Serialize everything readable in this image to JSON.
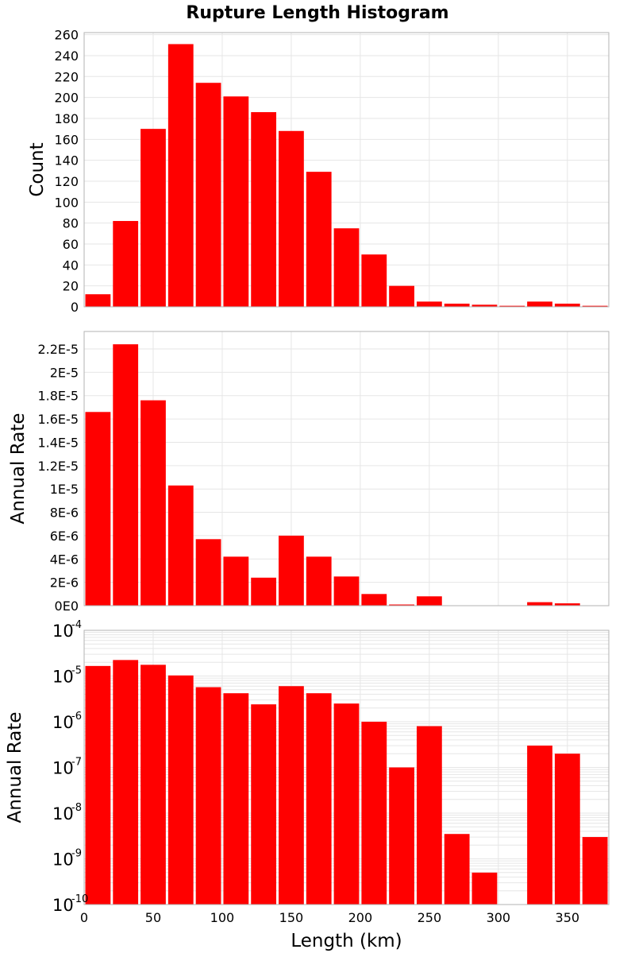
{
  "title": "Rupture Length Histogram",
  "colors": {
    "bar": "#ff0000",
    "grid": "#e6e6e6",
    "frame": "#b3b3b3"
  },
  "chart_data": [
    {
      "type": "bar",
      "title": "Rupture Length Histogram",
      "xlabel": "Length (km)",
      "ylabel": "Count",
      "xlim": [
        0,
        380
      ],
      "ylim": [
        0,
        262
      ],
      "bin_width": 20,
      "x": [
        10,
        30,
        50,
        70,
        90,
        110,
        130,
        150,
        170,
        190,
        210,
        230,
        250,
        270,
        290,
        310,
        330,
        350,
        370
      ],
      "values": [
        12,
        82,
        170,
        251,
        214,
        201,
        186,
        168,
        129,
        75,
        50,
        20,
        5,
        3,
        2,
        1,
        5,
        3,
        1
      ],
      "yticks": [
        0,
        20,
        40,
        60,
        80,
        100,
        120,
        140,
        160,
        180,
        200,
        220,
        240,
        260
      ],
      "ytick_labels": [
        "0",
        "20",
        "40",
        "60",
        "80",
        "100",
        "120",
        "140",
        "160",
        "180",
        "200",
        "220",
        "240",
        "260"
      ],
      "grid": true
    },
    {
      "type": "bar",
      "xlabel": "Length (km)",
      "ylabel": "Annual Rate",
      "xlim": [
        0,
        380
      ],
      "ylim": [
        0,
        2.35e-05
      ],
      "bin_width": 20,
      "x": [
        10,
        30,
        50,
        70,
        90,
        110,
        130,
        150,
        170,
        190,
        210,
        230,
        250,
        270,
        290,
        310,
        330,
        350,
        370
      ],
      "values": [
        1.66e-05,
        2.24e-05,
        1.76e-05,
        1.03e-05,
        5.7e-06,
        4.2e-06,
        2.4e-06,
        6e-06,
        4.2e-06,
        2.5e-06,
        1e-06,
        1e-07,
        8e-07,
        3.5e-09,
        5e-10,
        1e-10,
        3e-07,
        2e-07,
        3e-09
      ],
      "yticks": [
        0,
        2e-06,
        4e-06,
        6e-06,
        8e-06,
        1e-05,
        1.2e-05,
        1.4e-05,
        1.6e-05,
        1.8e-05,
        2e-05,
        2.2e-05
      ],
      "ytick_labels": [
        "0E0",
        "2E-6",
        "4E-6",
        "6E-6",
        "8E-6",
        "1E-5",
        "1.2E-5",
        "1.4E-5",
        "1.6E-5",
        "1.8E-5",
        "2E-5",
        "2.2E-5"
      ],
      "grid": true
    },
    {
      "type": "bar",
      "xlabel": "Length (km)",
      "ylabel": "Annual Rate",
      "log_y": true,
      "xlim": [
        0,
        380
      ],
      "ylim": [
        1e-10,
        0.0001
      ],
      "bin_width": 20,
      "x": [
        10,
        30,
        50,
        70,
        90,
        110,
        130,
        150,
        170,
        190,
        210,
        230,
        250,
        270,
        290,
        310,
        330,
        350,
        370
      ],
      "values": [
        1.66e-05,
        2.24e-05,
        1.76e-05,
        1.03e-05,
        5.7e-06,
        4.2e-06,
        2.4e-06,
        6e-06,
        4.2e-06,
        2.5e-06,
        1e-06,
        1e-07,
        8e-07,
        3.5e-09,
        5e-10,
        1e-10,
        3e-07,
        2e-07,
        3e-09
      ],
      "yticks": [
        1e-10,
        1e-09,
        1e-08,
        1e-07,
        1e-06,
        1e-05,
        0.0001
      ],
      "ytick_exponents": [
        "-10",
        "-9",
        "-8",
        "-7",
        "-6",
        "-5",
        "-4"
      ],
      "ytick_base": "10",
      "xticks": [
        0,
        50,
        100,
        150,
        200,
        250,
        300,
        350
      ],
      "xtick_labels": [
        "0",
        "50",
        "100",
        "150",
        "200",
        "250",
        "300",
        "350"
      ],
      "grid": true
    }
  ]
}
